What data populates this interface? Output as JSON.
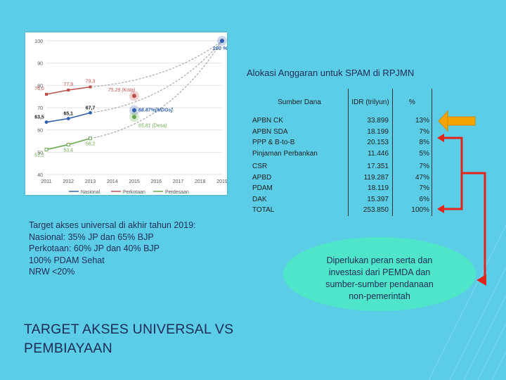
{
  "chart_data": {
    "type": "line",
    "x": [
      "2011",
      "2012",
      "2013",
      "2014",
      "2015",
      "2016",
      "2017",
      "2018",
      "2019"
    ],
    "y_ticks": [
      "40",
      "50",
      "60",
      "70",
      "80",
      "90",
      "100"
    ],
    "ylim": [
      40,
      100
    ],
    "series": [
      {
        "name": "Nasional",
        "color": "#2e5fb0",
        "points": [
          [
            2011,
            63.5
          ],
          [
            2012,
            65.1
          ],
          [
            2013,
            67.7
          ]
        ],
        "labels": [
          "63,5",
          "65,1",
          "67,7"
        ]
      },
      {
        "name": "Perkotaan",
        "color": "#c0504d",
        "points": [
          [
            2011,
            76.0
          ],
          [
            2012,
            77.9
          ],
          [
            2013,
            79.3
          ]
        ],
        "labels": [
          "76,0",
          "77,9",
          "79,3"
        ]
      },
      {
        "name": "Perdesaan",
        "color": "#6aa84f",
        "points": [
          [
            2011,
            51.2
          ],
          [
            2012,
            53.4
          ],
          [
            2013,
            56.2
          ]
        ],
        "labels": [
          "51,2",
          "53,4",
          "56,2"
        ]
      }
    ],
    "annotations": [
      {
        "text": "75,29 (Kota)",
        "x": 2015,
        "y": 75.29,
        "color": "#c0504d"
      },
      {
        "text": "68.87%[MDGs]",
        "x": 2015,
        "y": 68.87,
        "color": "#2e5fb0"
      },
      {
        "text": "65,81 (Desa)",
        "x": 2015,
        "y": 65.81,
        "color": "#6aa84f"
      },
      {
        "text": "100 %",
        "x": 2019,
        "y": 100,
        "color": "#2e5fb0"
      }
    ]
  },
  "alloc": {
    "title": "Alokasi Anggaran untuk SPAM di RPJMN",
    "headers": [
      "Sumber Dana",
      "IDR (trilyun)",
      "%"
    ],
    "rows": [
      {
        "name": "APBN  CK",
        "value": "33.899",
        "pct": "13%"
      },
      {
        "name": "APBN SDA",
        "value": "18.199",
        "pct": "7%"
      },
      {
        "name": "PPP & B-to-B",
        "value": "20.153",
        "pct": "8%"
      },
      {
        "name": "Pinjaman Perbankan",
        "value": "11.446",
        "pct": "5%"
      },
      {
        "name": "CSR",
        "value": "17.351",
        "pct": "7%"
      },
      {
        "name": "APBD",
        "value": "119.287",
        "pct": "47%"
      },
      {
        "name": "PDAM",
        "value": "18.119",
        "pct": "7%"
      },
      {
        "name": "DAK",
        "value": "15.397",
        "pct": "6%"
      },
      {
        "name": "TOTAL",
        "value": "253.850",
        "pct": "100%"
      }
    ]
  },
  "target_text": "Target akses universal di akhir tahun 2019:\nNasional: 35% JP dan 65% BJP\nPerkotaan: 60% JP dan 40% BJP\n100% PDAM Sehat\nNRW <20%",
  "bubble_text": "Diperlukan peran serta dan\ninvestasi dari PEMDA dan\nsumber-sumber pendanaan\nnon-pemerintah",
  "main_title": "TARGET AKSES UNIVERSAL VS\nPEMBIAYAAN",
  "colors": {
    "bg": "#5bcfe8",
    "bubble": "#4ee5c8",
    "arrow_orange": "#f4a300",
    "bracket_red": "#e02020",
    "title": "#1d2b56"
  }
}
